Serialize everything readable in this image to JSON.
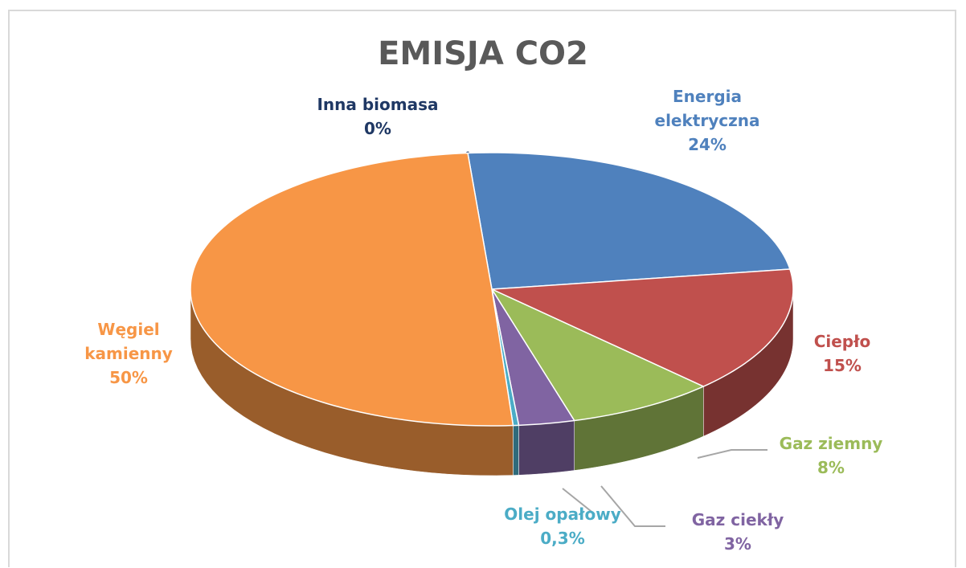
{
  "chart_data": {
    "type": "pie",
    "title": "EMISJA CO2",
    "categories": [
      "Inna biomasa",
      "Energia elektryczna",
      "Ciepło",
      "Gaz ziemny",
      "Gaz ciekły",
      "Olej opałowy",
      "Węgiel kamienny"
    ],
    "values": [
      0,
      24,
      15,
      8,
      3,
      0.3,
      50
    ],
    "value_labels": [
      "0%",
      "24%",
      "15%",
      "8%",
      "3%",
      "0,3%",
      "50%"
    ],
    "colors": [
      "#1f3864",
      "#4f81bd",
      "#c0504d",
      "#9bbb59",
      "#8064a2",
      "#4bacc6",
      "#f79646"
    ]
  }
}
